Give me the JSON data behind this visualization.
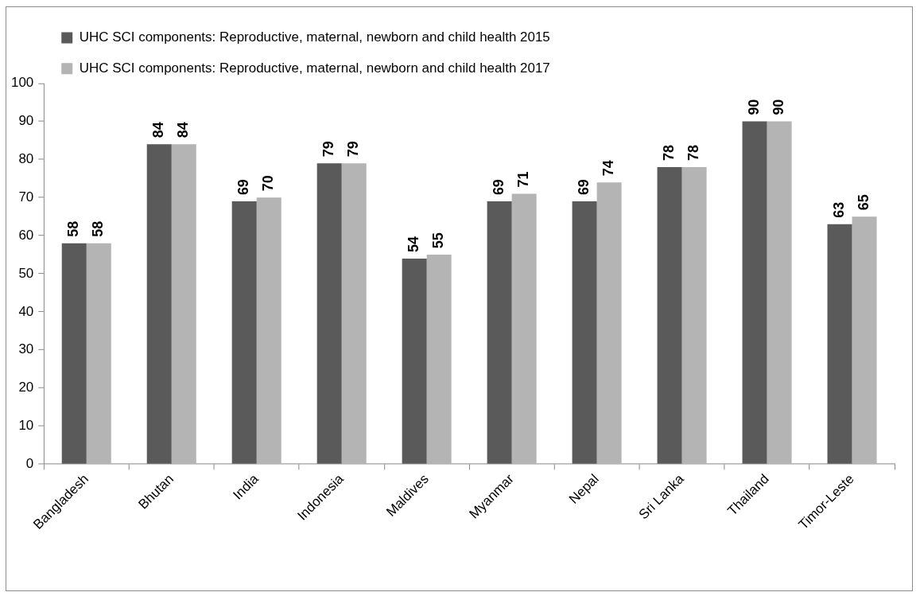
{
  "chart_data": {
    "type": "bar",
    "categories": [
      "Bangladesh",
      "Bhutan",
      "India",
      "Indonesia",
      "Maldives",
      "Myanmar",
      "Nepal",
      "Sri Lanka",
      "Thailand",
      "Timor-Leste"
    ],
    "series": [
      {
        "name": "UHC SCI components: Reproductive, maternal, newborn and child health 2015",
        "color": "#5a5a5a",
        "values": [
          58,
          84,
          69,
          79,
          54,
          69,
          69,
          78,
          90,
          63
        ]
      },
      {
        "name": "UHC SCI components: Reproductive, maternal, newborn and child health 2017",
        "color": "#b4b4b4",
        "values": [
          58,
          84,
          70,
          79,
          55,
          71,
          74,
          78,
          90,
          65
        ]
      }
    ],
    "ylim": [
      0,
      100
    ],
    "yticks": [
      0,
      10,
      20,
      30,
      40,
      50,
      60,
      70,
      80,
      90,
      100
    ],
    "legend": "top left",
    "data_labels": true
  }
}
